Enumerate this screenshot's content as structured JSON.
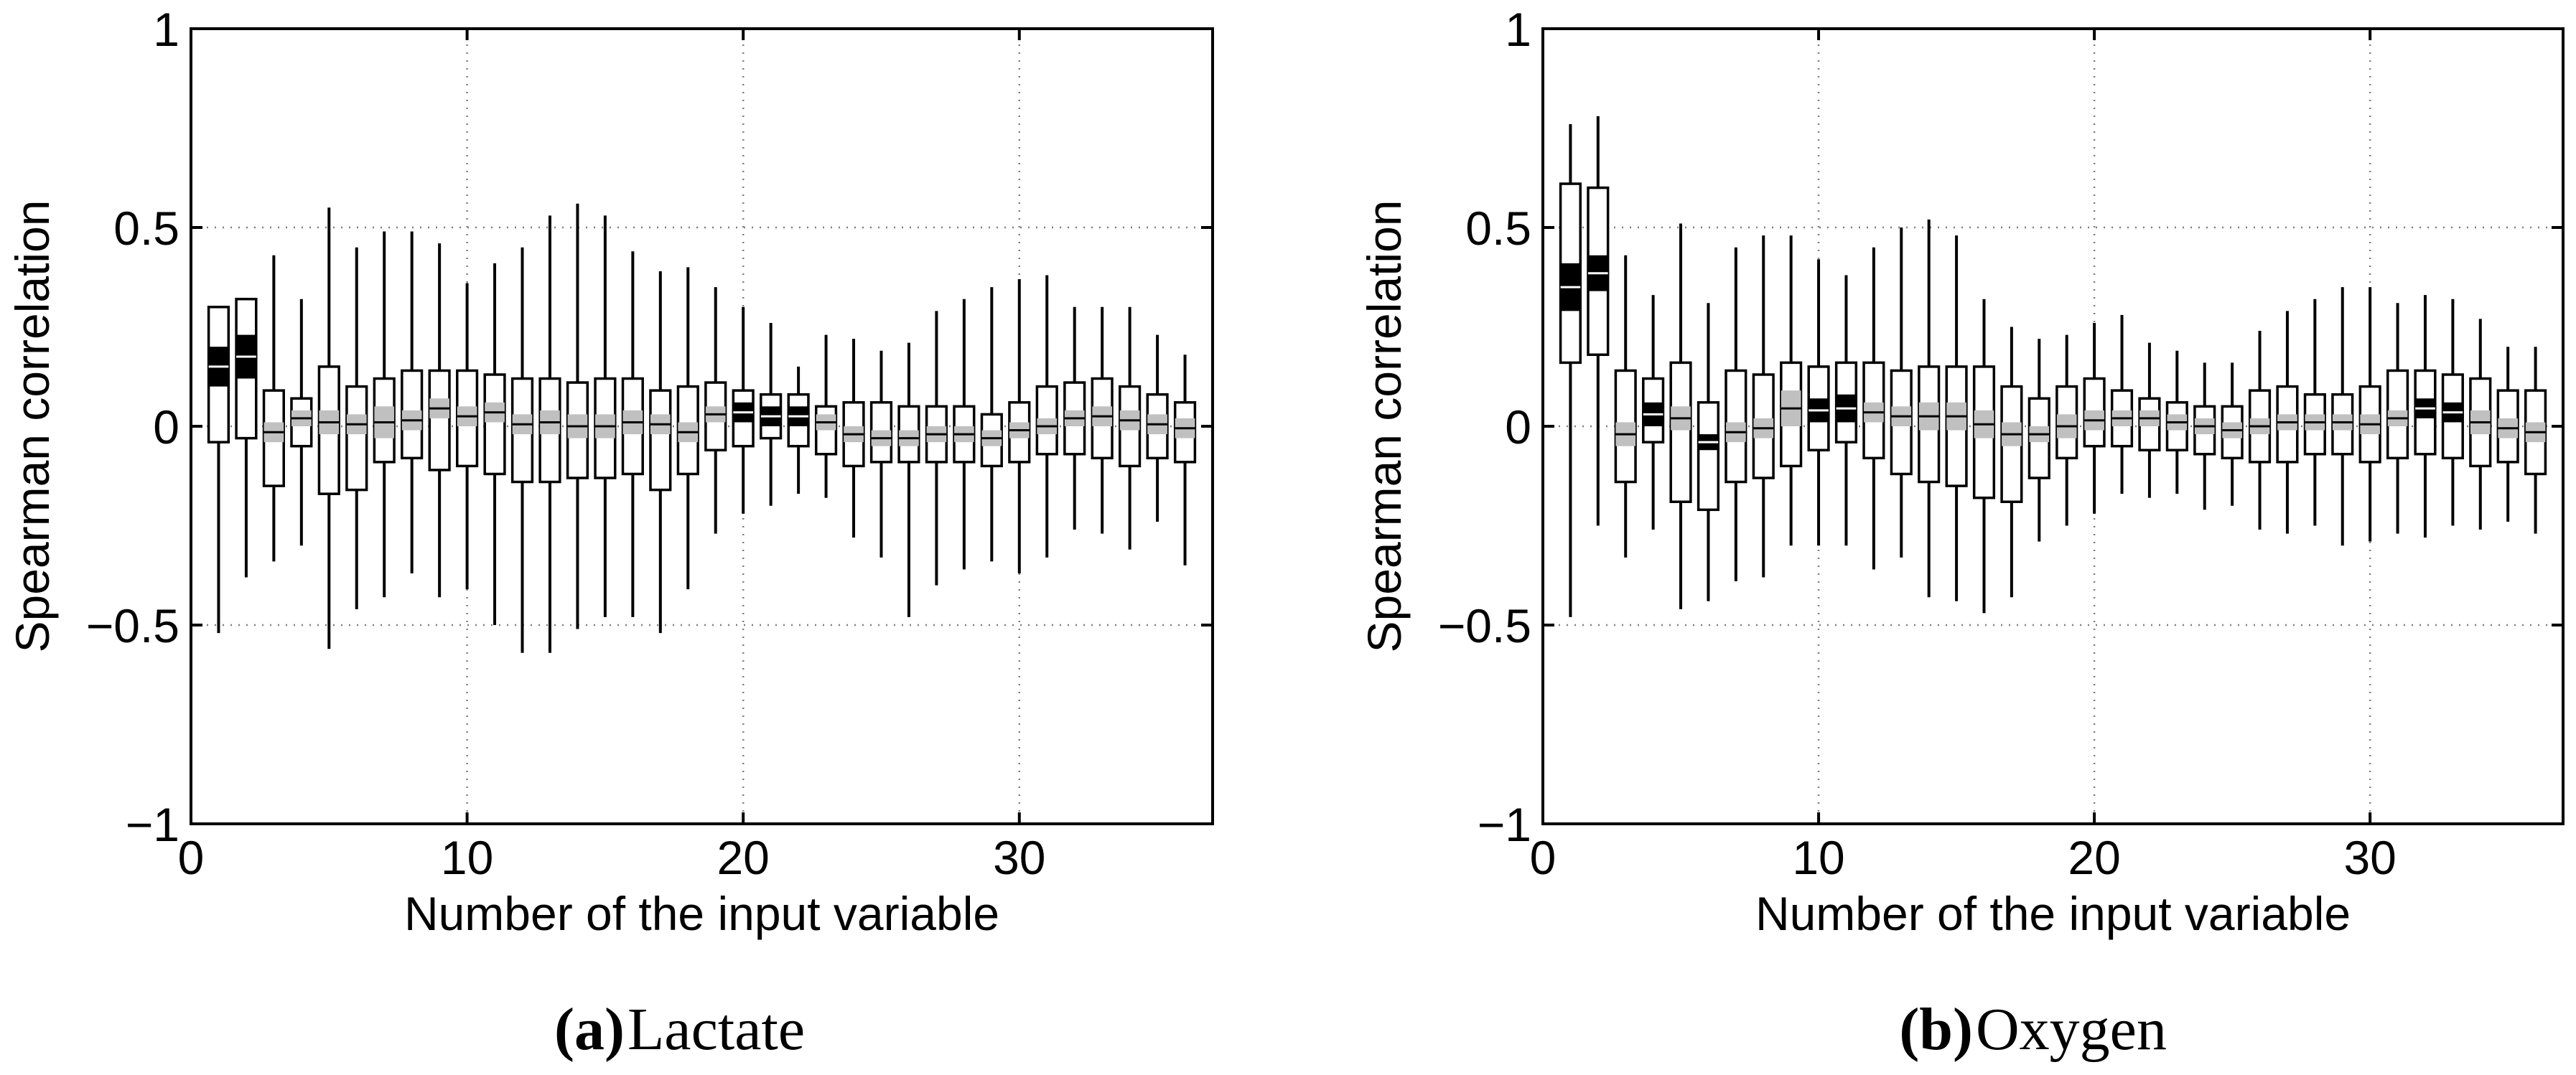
{
  "chart_data": [
    {
      "type": "boxplot",
      "panel_letter": "(a)",
      "panel_name": "Lactate",
      "xlabel": "Number of the input variable",
      "ylabel": "Spearman correlation",
      "xlim": [
        0,
        37
      ],
      "ylim": [
        -1,
        1
      ],
      "xticks": [
        0,
        10,
        20,
        30
      ],
      "yticks": [
        1,
        0.5,
        0,
        -0.5,
        -1
      ],
      "ytick_labels": [
        "1",
        "0.5",
        "0",
        "−0.5",
        "−1"
      ],
      "grid": true,
      "boxes": [
        {
          "x": 1,
          "wlo": -0.52,
          "q1": -0.04,
          "q3": 0.3,
          "n1": 0.1,
          "n2": 0.2,
          "sig": true
        },
        {
          "x": 2,
          "wlo": -0.38,
          "q1": -0.03,
          "q3": 0.32,
          "n1": 0.12,
          "n2": 0.23,
          "sig": true
        },
        {
          "x": 3,
          "wlo": -0.34,
          "q1": -0.15,
          "q3": 0.09,
          "n1": -0.04,
          "n2": 0.01,
          "whi": 0.43
        },
        {
          "x": 4,
          "wlo": -0.3,
          "q1": -0.05,
          "q3": 0.07,
          "n1": 0.0,
          "n2": 0.04,
          "whi": 0.32
        },
        {
          "x": 5,
          "wlo": -0.56,
          "q1": -0.17,
          "q3": 0.15,
          "n1": -0.02,
          "n2": 0.04,
          "whi": 0.55
        },
        {
          "x": 6,
          "wlo": -0.46,
          "q1": -0.16,
          "q3": 0.1,
          "n1": -0.02,
          "n2": 0.03,
          "whi": 0.45
        },
        {
          "x": 7,
          "wlo": -0.43,
          "q1": -0.09,
          "q3": 0.12,
          "n1": -0.03,
          "n2": 0.05,
          "whi": 0.49
        },
        {
          "x": 8,
          "wlo": -0.37,
          "q1": -0.08,
          "q3": 0.14,
          "n1": -0.01,
          "n2": 0.04,
          "whi": 0.49
        },
        {
          "x": 9,
          "wlo": -0.43,
          "q1": -0.11,
          "q3": 0.14,
          "n1": 0.02,
          "n2": 0.07,
          "whi": 0.46
        },
        {
          "x": 10,
          "wlo": -0.41,
          "q1": -0.1,
          "q3": 0.14,
          "n1": 0.0,
          "n2": 0.05,
          "whi": 0.36
        },
        {
          "x": 11,
          "wlo": -0.5,
          "q1": -0.12,
          "q3": 0.13,
          "n1": 0.01,
          "n2": 0.06,
          "whi": 0.41
        },
        {
          "x": 12,
          "wlo": -0.57,
          "q1": -0.14,
          "q3": 0.12,
          "n1": -0.02,
          "n2": 0.03,
          "whi": 0.45
        },
        {
          "x": 13,
          "wlo": -0.57,
          "q1": -0.14,
          "q3": 0.12,
          "n1": -0.02,
          "n2": 0.04,
          "whi": 0.53
        },
        {
          "x": 14,
          "wlo": -0.51,
          "q1": -0.13,
          "q3": 0.11,
          "n1": -0.03,
          "n2": 0.03,
          "whi": 0.56
        },
        {
          "x": 15,
          "wlo": -0.48,
          "q1": -0.13,
          "q3": 0.12,
          "n1": -0.03,
          "n2": 0.03,
          "whi": 0.53
        },
        {
          "x": 16,
          "wlo": -0.48,
          "q1": -0.12,
          "q3": 0.12,
          "n1": -0.02,
          "n2": 0.04,
          "whi": 0.44
        },
        {
          "x": 17,
          "wlo": -0.52,
          "q1": -0.16,
          "q3": 0.09,
          "n1": -0.02,
          "n2": 0.03,
          "whi": 0.39
        },
        {
          "x": 18,
          "wlo": -0.41,
          "q1": -0.12,
          "q3": 0.1,
          "n1": -0.04,
          "n2": 0.01,
          "whi": 0.4
        },
        {
          "x": 19,
          "wlo": -0.27,
          "q1": -0.06,
          "q3": 0.11,
          "n1": 0.01,
          "n2": 0.05,
          "whi": 0.35
        },
        {
          "x": 20,
          "wlo": -0.22,
          "q1": -0.05,
          "q3": 0.09,
          "n1": 0.01,
          "n2": 0.06,
          "whi": 0.3,
          "sig": true
        },
        {
          "x": 21,
          "wlo": -0.2,
          "q1": -0.03,
          "q3": 0.08,
          "n1": 0.0,
          "n2": 0.05,
          "whi": 0.26,
          "sig": true
        },
        {
          "x": 22,
          "wlo": -0.17,
          "q1": -0.05,
          "q3": 0.08,
          "n1": 0.0,
          "n2": 0.05,
          "whi": 0.15,
          "sig": true
        },
        {
          "x": 23,
          "wlo": -0.18,
          "q1": -0.07,
          "q3": 0.05,
          "n1": -0.01,
          "n2": 0.03,
          "whi": 0.23
        },
        {
          "x": 24,
          "wlo": -0.28,
          "q1": -0.1,
          "q3": 0.06,
          "n1": -0.04,
          "n2": 0.0,
          "whi": 0.22
        },
        {
          "x": 25,
          "wlo": -0.33,
          "q1": -0.09,
          "q3": 0.06,
          "n1": -0.05,
          "n2": -0.01,
          "whi": 0.19
        },
        {
          "x": 26,
          "wlo": -0.48,
          "q1": -0.09,
          "q3": 0.05,
          "n1": -0.05,
          "n2": -0.01,
          "whi": 0.21
        },
        {
          "x": 27,
          "wlo": -0.4,
          "q1": -0.09,
          "q3": 0.05,
          "n1": -0.04,
          "n2": 0.0,
          "whi": 0.29
        },
        {
          "x": 28,
          "wlo": -0.36,
          "q1": -0.09,
          "q3": 0.05,
          "n1": -0.04,
          "n2": 0.0,
          "whi": 0.32
        },
        {
          "x": 29,
          "wlo": -0.34,
          "q1": -0.1,
          "q3": 0.03,
          "n1": -0.05,
          "n2": -0.01,
          "whi": 0.35
        },
        {
          "x": 30,
          "wlo": -0.37,
          "q1": -0.09,
          "q3": 0.06,
          "n1": -0.03,
          "n2": 0.01,
          "whi": 0.37
        },
        {
          "x": 31,
          "wlo": -0.33,
          "q1": -0.07,
          "q3": 0.1,
          "n1": -0.02,
          "n2": 0.02,
          "whi": 0.38
        },
        {
          "x": 32,
          "wlo": -0.26,
          "q1": -0.07,
          "q3": 0.11,
          "n1": 0.0,
          "n2": 0.04,
          "whi": 0.3
        },
        {
          "x": 33,
          "wlo": -0.27,
          "q1": -0.08,
          "q3": 0.12,
          "n1": 0.0,
          "n2": 0.05,
          "whi": 0.3
        },
        {
          "x": 34,
          "wlo": -0.31,
          "q1": -0.1,
          "q3": 0.1,
          "n1": -0.01,
          "n2": 0.04,
          "whi": 0.3
        },
        {
          "x": 35,
          "wlo": -0.24,
          "q1": -0.08,
          "q3": 0.08,
          "n1": -0.02,
          "n2": 0.03,
          "whi": 0.23
        },
        {
          "x": 36,
          "wlo": -0.35,
          "q1": -0.09,
          "q3": 0.06,
          "n1": -0.03,
          "n2": 0.02,
          "whi": 0.18
        }
      ]
    },
    {
      "type": "boxplot",
      "panel_letter": "(b)",
      "panel_name": "Oxygen",
      "xlabel": "Number of the input variable",
      "ylabel": "Spearman correlation",
      "xlim": [
        0,
        37
      ],
      "ylim": [
        -1,
        1
      ],
      "xticks": [
        0,
        10,
        20,
        30
      ],
      "yticks": [
        1,
        0.5,
        0,
        -0.5,
        -1
      ],
      "ytick_labels": [
        "1",
        "0.5",
        "0",
        "−0.5",
        "−1"
      ],
      "grid": true,
      "boxes": [
        {
          "x": 1,
          "wlo": -0.48,
          "q1": 0.16,
          "q3": 0.61,
          "n1": 0.29,
          "n2": 0.41,
          "whi": 0.76,
          "sig": true
        },
        {
          "x": 2,
          "wlo": -0.25,
          "q1": 0.18,
          "q3": 0.6,
          "n1": 0.34,
          "n2": 0.43,
          "whi": 0.78,
          "sig": true
        },
        {
          "x": 3,
          "wlo": -0.33,
          "q1": -0.14,
          "q3": 0.14,
          "n1": -0.05,
          "n2": 0.01,
          "whi": 0.43
        },
        {
          "x": 4,
          "wlo": -0.26,
          "q1": -0.04,
          "q3": 0.12,
          "n1": 0.0,
          "n2": 0.06,
          "whi": 0.33,
          "sig": true
        },
        {
          "x": 5,
          "wlo": -0.46,
          "q1": -0.19,
          "q3": 0.16,
          "n1": -0.01,
          "n2": 0.05,
          "whi": 0.51
        },
        {
          "x": 6,
          "wlo": -0.44,
          "q1": -0.21,
          "q3": 0.06,
          "n1": -0.06,
          "n2": -0.02,
          "whi": 0.31,
          "sig": true
        },
        {
          "x": 7,
          "wlo": -0.39,
          "q1": -0.14,
          "q3": 0.14,
          "n1": -0.04,
          "n2": 0.01,
          "whi": 0.45
        },
        {
          "x": 8,
          "wlo": -0.38,
          "q1": -0.13,
          "q3": 0.13,
          "n1": -0.03,
          "n2": 0.02,
          "whi": 0.48
        },
        {
          "x": 9,
          "wlo": -0.3,
          "q1": -0.1,
          "q3": 0.16,
          "n1": 0.0,
          "n2": 0.09,
          "whi": 0.48
        },
        {
          "x": 10,
          "wlo": -0.3,
          "q1": -0.06,
          "q3": 0.15,
          "n1": 0.01,
          "n2": 0.07,
          "whi": 0.42,
          "sig": true
        },
        {
          "x": 11,
          "wlo": -0.3,
          "q1": -0.04,
          "q3": 0.16,
          "n1": 0.01,
          "n2": 0.08,
          "whi": 0.38,
          "sig": true
        },
        {
          "x": 12,
          "wlo": -0.36,
          "q1": -0.08,
          "q3": 0.16,
          "n1": 0.01,
          "n2": 0.06,
          "whi": 0.45
        },
        {
          "x": 13,
          "wlo": -0.33,
          "q1": -0.12,
          "q3": 0.14,
          "n1": 0.0,
          "n2": 0.05,
          "whi": 0.5
        },
        {
          "x": 14,
          "wlo": -0.43,
          "q1": -0.14,
          "q3": 0.15,
          "n1": -0.01,
          "n2": 0.06,
          "whi": 0.52
        },
        {
          "x": 15,
          "wlo": -0.44,
          "q1": -0.15,
          "q3": 0.15,
          "n1": -0.01,
          "n2": 0.06,
          "whi": 0.48
        },
        {
          "x": 16,
          "wlo": -0.47,
          "q1": -0.18,
          "q3": 0.15,
          "n1": -0.03,
          "n2": 0.04,
          "whi": 0.32
        },
        {
          "x": 17,
          "wlo": -0.43,
          "q1": -0.19,
          "q3": 0.1,
          "n1": -0.05,
          "n2": 0.01,
          "whi": 0.25
        },
        {
          "x": 18,
          "wlo": -0.29,
          "q1": -0.13,
          "q3": 0.07,
          "n1": -0.04,
          "n2": 0.0,
          "whi": 0.22
        },
        {
          "x": 19,
          "wlo": -0.25,
          "q1": -0.08,
          "q3": 0.1,
          "n1": -0.03,
          "n2": 0.03,
          "whi": 0.23
        },
        {
          "x": 20,
          "wlo": -0.22,
          "q1": -0.05,
          "q3": 0.12,
          "n1": -0.01,
          "n2": 0.04,
          "whi": 0.26
        },
        {
          "x": 21,
          "wlo": -0.17,
          "q1": -0.05,
          "q3": 0.09,
          "n1": 0.0,
          "n2": 0.04,
          "whi": 0.28
        },
        {
          "x": 22,
          "wlo": -0.18,
          "q1": -0.06,
          "q3": 0.07,
          "n1": 0.0,
          "n2": 0.04,
          "whi": 0.21
        },
        {
          "x": 23,
          "wlo": -0.17,
          "q1": -0.06,
          "q3": 0.06,
          "n1": -0.01,
          "n2": 0.03,
          "whi": 0.19
        },
        {
          "x": 24,
          "wlo": -0.21,
          "q1": -0.07,
          "q3": 0.05,
          "n1": -0.02,
          "n2": 0.02,
          "whi": 0.16
        },
        {
          "x": 25,
          "wlo": -0.2,
          "q1": -0.08,
          "q3": 0.05,
          "n1": -0.03,
          "n2": 0.01,
          "whi": 0.16
        },
        {
          "x": 26,
          "wlo": -0.26,
          "q1": -0.09,
          "q3": 0.09,
          "n1": -0.02,
          "n2": 0.02,
          "whi": 0.24
        },
        {
          "x": 27,
          "wlo": -0.27,
          "q1": -0.09,
          "q3": 0.1,
          "n1": -0.01,
          "n2": 0.03,
          "whi": 0.29
        },
        {
          "x": 28,
          "wlo": -0.25,
          "q1": -0.07,
          "q3": 0.08,
          "n1": -0.01,
          "n2": 0.03,
          "whi": 0.32
        },
        {
          "x": 29,
          "wlo": -0.3,
          "q1": -0.07,
          "q3": 0.08,
          "n1": -0.01,
          "n2": 0.03,
          "whi": 0.35
        },
        {
          "x": 30,
          "wlo": -0.29,
          "q1": -0.09,
          "q3": 0.1,
          "n1": -0.02,
          "n2": 0.03,
          "whi": 0.35
        },
        {
          "x": 31,
          "wlo": -0.27,
          "q1": -0.08,
          "q3": 0.14,
          "n1": 0.0,
          "n2": 0.04,
          "whi": 0.31
        },
        {
          "x": 32,
          "wlo": -0.28,
          "q1": -0.07,
          "q3": 0.14,
          "n1": 0.02,
          "n2": 0.07,
          "whi": 0.33,
          "sig": true
        },
        {
          "x": 33,
          "wlo": -0.25,
          "q1": -0.08,
          "q3": 0.13,
          "n1": 0.01,
          "n2": 0.06,
          "whi": 0.32,
          "sig": true
        },
        {
          "x": 34,
          "wlo": -0.26,
          "q1": -0.1,
          "q3": 0.12,
          "n1": -0.02,
          "n2": 0.04,
          "whi": 0.27
        },
        {
          "x": 35,
          "wlo": -0.24,
          "q1": -0.09,
          "q3": 0.09,
          "n1": -0.03,
          "n2": 0.02,
          "whi": 0.2
        },
        {
          "x": 36,
          "wlo": -0.27,
          "q1": -0.12,
          "q3": 0.09,
          "n1": -0.04,
          "n2": 0.01,
          "whi": 0.2
        }
      ]
    }
  ]
}
